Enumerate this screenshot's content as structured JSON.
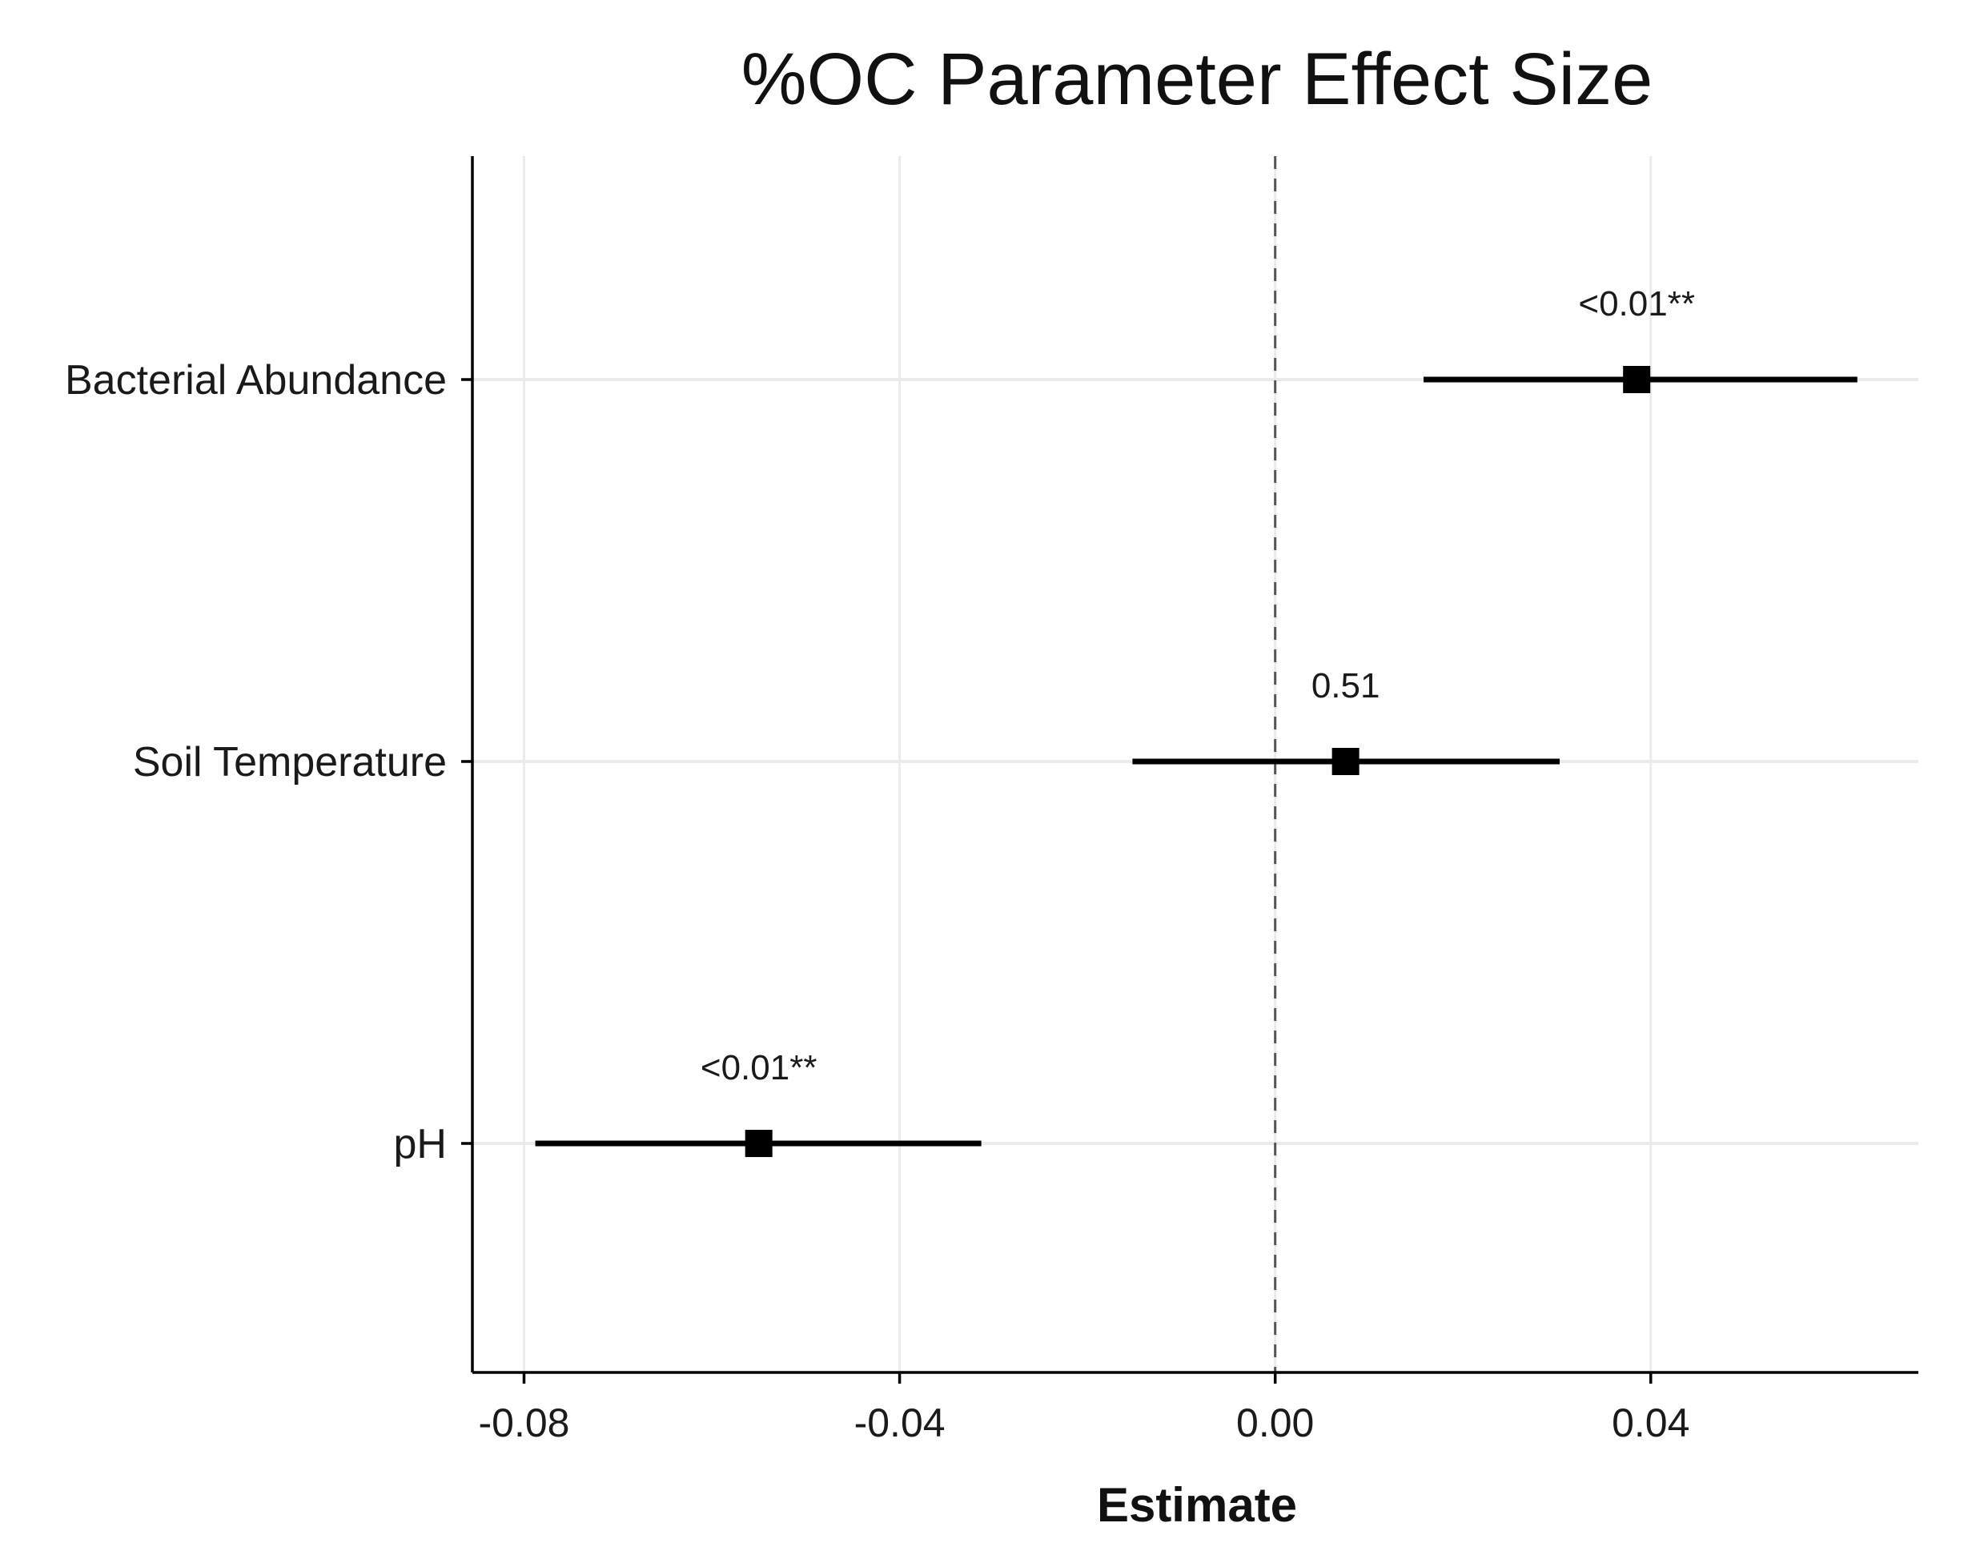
{
  "chart_data": {
    "type": "forest",
    "title": "%OC Parameter Effect Size",
    "xlabel": "Estimate",
    "ylabel": "",
    "xlim": [
      -0.0855,
      0.0685
    ],
    "xticks": [
      -0.08,
      -0.04,
      0.0,
      0.04
    ],
    "xtick_labels": [
      "-0.08",
      "-0.04",
      "0.00",
      "0.04"
    ],
    "reference_line": 0,
    "grid": true,
    "categories": [
      "Bacterial Abundance",
      "Soil Temperature",
      "pH"
    ],
    "series": [
      {
        "name": "Estimate",
        "points": [
          {
            "label": "Bacterial Abundance",
            "estimate": 0.0385,
            "lower": 0.0158,
            "upper": 0.062,
            "p_label": "<0.01**"
          },
          {
            "label": "Soil Temperature",
            "estimate": 0.0075,
            "lower": -0.0152,
            "upper": 0.0303,
            "p_label": "0.51"
          },
          {
            "label": "pH",
            "estimate": -0.055,
            "lower": -0.0788,
            "upper": -0.0313,
            "p_label": "<0.01**"
          }
        ]
      }
    ],
    "colors": {
      "point": "#000000",
      "interval": "#000000",
      "axis": "#000000",
      "grid": "#ebebeb",
      "refline": "#555555"
    }
  }
}
